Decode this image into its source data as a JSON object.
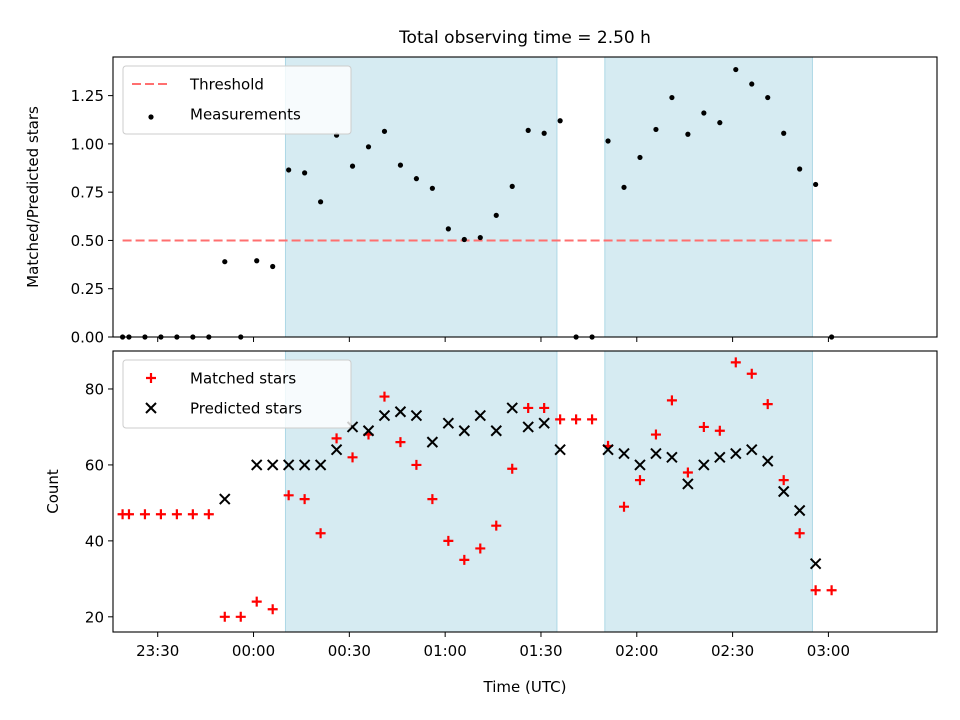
{
  "title": "Total observing time = 2.50 h",
  "chart_data": [
    {
      "type": "scatter",
      "panel": "top",
      "ylabel": "Matched/Predicted stars",
      "xlim": [
        -44,
        214
      ],
      "ylim": [
        0,
        1.45
      ],
      "y_ticks": [
        "0.00",
        "0.25",
        "0.50",
        "0.75",
        "1.00",
        "1.25"
      ],
      "y_tick_values": [
        0,
        0.25,
        0.5,
        0.75,
        1.0,
        1.25
      ],
      "shaded_regions": [
        [
          10,
          95
        ],
        [
          110,
          175
        ]
      ],
      "shade_color": "#add8e6",
      "legend_position": "upper left",
      "series": [
        {
          "name": "Threshold",
          "kind": "line",
          "style": "dashed",
          "color": "#ff6f6f",
          "x": [
            -41,
            181
          ],
          "y": [
            0.5,
            0.5
          ]
        },
        {
          "name": "Measurements",
          "kind": "scatter",
          "marker": "dot",
          "color": "#000000",
          "x": [
            -41,
            -39,
            -34,
            -29,
            -24,
            -19,
            -14,
            -9,
            -4,
            1,
            6,
            11,
            16,
            21,
            26,
            31,
            36,
            41,
            46,
            51,
            56,
            61,
            66,
            71,
            76,
            81,
            86,
            91,
            96,
            101,
            106,
            111,
            116,
            121,
            126,
            131,
            136,
            141,
            146,
            151,
            156,
            161,
            166,
            171,
            176,
            181
          ],
          "y": [
            0,
            0,
            0,
            0,
            0,
            0,
            0,
            0.39,
            0,
            0.395,
            0.365,
            0.865,
            0.85,
            0.7,
            1.045,
            0.885,
            0.985,
            1.065,
            0.89,
            0.82,
            0.77,
            0.56,
            0.505,
            0.515,
            0.63,
            0.78,
            1.07,
            1.055,
            1.12,
            0,
            0,
            1.015,
            0.775,
            0.93,
            1.075,
            1.24,
            1.05,
            1.16,
            1.11,
            1.385,
            1.31,
            1.24,
            1.055,
            0.87,
            0.79,
            0
          ]
        }
      ]
    },
    {
      "type": "scatter",
      "panel": "bottom",
      "ylabel": "Count",
      "xlabel": "Time (UTC)",
      "xlim": [
        -44,
        214
      ],
      "ylim": [
        16,
        90
      ],
      "y_ticks": [
        "20",
        "40",
        "60",
        "80"
      ],
      "y_tick_values": [
        20,
        40,
        60,
        80
      ],
      "x_ticks": [
        "23:30",
        "00:00",
        "00:30",
        "01:00",
        "01:30",
        "02:00",
        "02:30",
        "03:00"
      ],
      "x_tick_values": [
        -30,
        0,
        30,
        60,
        90,
        120,
        150,
        180
      ],
      "shaded_regions": [
        [
          10,
          95
        ],
        [
          110,
          175
        ]
      ],
      "shade_color": "#add8e6",
      "legend_position": "upper left",
      "series": [
        {
          "name": "Matched stars",
          "marker": "plus",
          "color": "#ff0000",
          "x": [
            -41,
            -39,
            -34,
            -29,
            -24,
            -19,
            -14,
            -9,
            -4,
            1,
            6,
            11,
            16,
            21,
            26,
            31,
            36,
            41,
            46,
            51,
            56,
            61,
            66,
            71,
            76,
            81,
            86,
            91,
            96,
            101,
            106,
            111,
            116,
            121,
            126,
            131,
            136,
            141,
            146,
            151,
            156,
            161,
            166,
            171,
            176,
            181
          ],
          "y": [
            47,
            47,
            47,
            47,
            47,
            47,
            47,
            20,
            20,
            24,
            22,
            52,
            51,
            42,
            67,
            62,
            68,
            78,
            66,
            60,
            51,
            40,
            35,
            38,
            44,
            59,
            75,
            75,
            72,
            72,
            72,
            65,
            49,
            56,
            68,
            77,
            58,
            70,
            69,
            87,
            84,
            76,
            56,
            42,
            27,
            27
          ]
        },
        {
          "name": "Predicted stars",
          "marker": "x",
          "color": "#000000",
          "x": [
            -9,
            1,
            6,
            11,
            16,
            21,
            26,
            31,
            36,
            41,
            46,
            51,
            56,
            61,
            66,
            71,
            76,
            81,
            86,
            91,
            96,
            111,
            116,
            121,
            126,
            131,
            136,
            141,
            146,
            151,
            156,
            161,
            166,
            171,
            176
          ],
          "y": [
            51,
            60,
            60,
            60,
            60,
            60,
            64,
            70,
            69,
            73,
            74,
            73,
            66,
            71,
            69,
            73,
            69,
            75,
            70,
            71,
            64,
            64,
            63,
            60,
            63,
            62,
            55,
            60,
            62,
            63,
            64,
            61,
            53,
            48,
            34
          ]
        }
      ]
    }
  ]
}
